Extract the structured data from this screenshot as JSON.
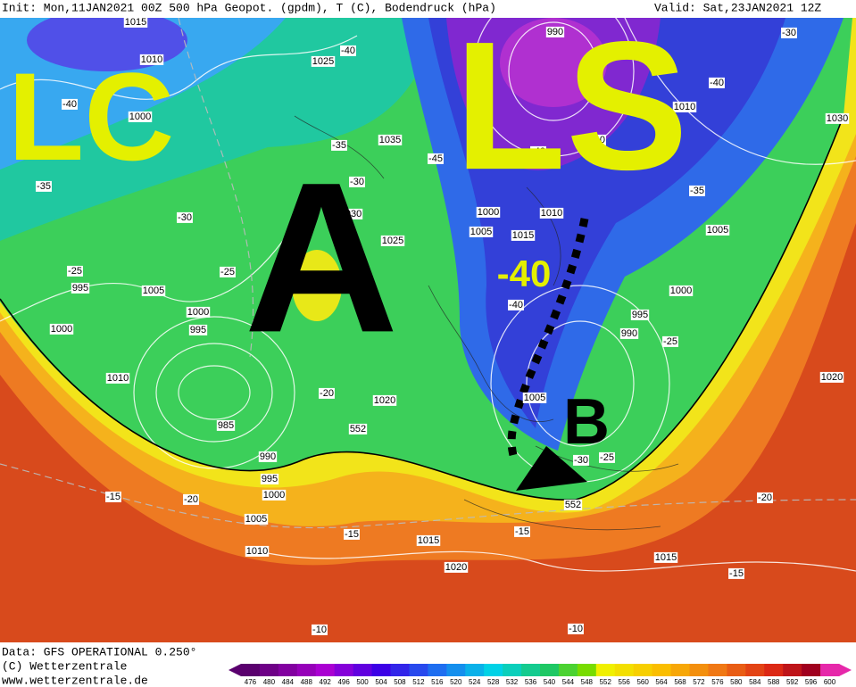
{
  "header": {
    "init": "Init: Mon,11JAN2021 00Z 500 hPa Geopot. (gpdm), T (C), Bodendruck (hPa)",
    "valid": "Valid: Sat,23JAN2021 12Z"
  },
  "overlay_labels": [
    "LC",
    "LS",
    "A",
    "B",
    "-40"
  ],
  "contour_labels": [
    "1015",
    "1010",
    "1025",
    "-40",
    "1000",
    "-40",
    "-35",
    "-30",
    "-25",
    "995",
    "1005",
    "1000",
    "995",
    "1000",
    "1010",
    "985",
    "990",
    "995",
    "1000",
    "1005",
    "1010",
    "-15",
    "-20",
    "1035",
    "-35",
    "-30",
    "1030",
    "1025",
    "-25",
    "-20",
    "1020",
    "552",
    "-45",
    "1000",
    "1005",
    "1015",
    "1010",
    "-40",
    "-40",
    "990",
    "1010",
    "-40",
    "-30",
    "1030",
    "-35",
    "1005",
    "1000",
    "995",
    "990",
    "-25",
    "1020",
    "1005",
    "-30",
    "-25",
    "552",
    "-20",
    "-15",
    "1015",
    "-15",
    "1020",
    "1015",
    "-15",
    "-10",
    "-10",
    "-40"
  ],
  "footer": [
    "Data: GFS OPERATIONAL 0.250°",
    "(C) Wetterzentrale",
    "www.wetterzentrale.de"
  ],
  "colorbar": [
    476,
    480,
    484,
    488,
    492,
    496,
    500,
    504,
    508,
    512,
    516,
    520,
    524,
    528,
    532,
    536,
    540,
    544,
    548,
    552,
    556,
    560,
    564,
    568,
    572,
    576,
    580,
    584,
    588,
    592,
    596,
    600
  ]
}
